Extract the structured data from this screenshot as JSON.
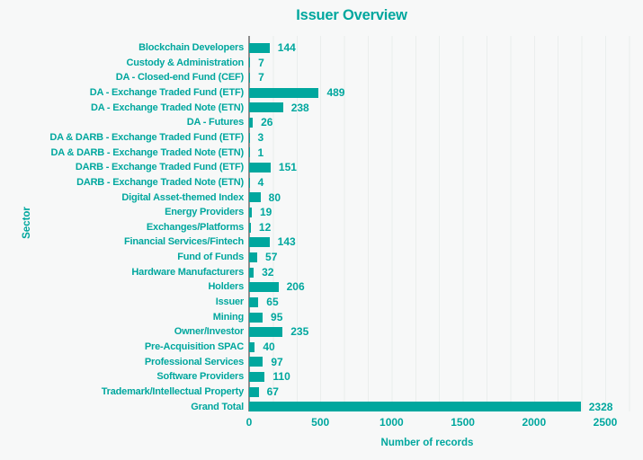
{
  "colors": {
    "accent": "#00a79e",
    "background": "#f7f8f8",
    "gridline": "#eaeeed",
    "axis_line": "#8d8d8d"
  },
  "chart_data": {
    "type": "bar",
    "orientation": "horizontal",
    "title": "Issuer Overview",
    "xlabel": "Number of records",
    "ylabel": "Sector",
    "xlim": [
      0,
      2500
    ],
    "xticks": [
      0,
      500,
      1000,
      1500,
      2000,
      2500
    ],
    "grid": "vertical minor gridlines on",
    "legend": "none",
    "value_labels": "shown at end of each bar",
    "categories": [
      "Blockchain Developers",
      "Custody & Administration",
      "DA - Closed-end Fund (CEF)",
      "DA - Exchange Traded Fund (ETF)",
      "DA - Exchange Traded Note (ETN)",
      "DA - Futures",
      "DA & DARB - Exchange Traded Fund (ETF)",
      "DA & DARB - Exchange Traded Note (ETN)",
      "DARB - Exchange Traded Fund (ETF)",
      "DARB - Exchange Traded Note (ETN)",
      "Digital Asset-themed Index",
      "Energy Providers",
      "Exchanges/Platforms",
      "Financial Services/Fintech",
      "Fund of Funds",
      "Hardware Manufacturers",
      "Holders",
      "Issuer",
      "Mining",
      "Owner/Investor",
      "Pre-Acquisition SPAC",
      "Professional Services",
      "Software Providers",
      "Trademark/Intellectual Property",
      "Grand Total"
    ],
    "values": [
      144,
      7,
      7,
      489,
      238,
      26,
      3,
      1,
      151,
      4,
      80,
      19,
      12,
      143,
      57,
      32,
      206,
      65,
      95,
      235,
      40,
      97,
      110,
      67,
      2328
    ]
  }
}
